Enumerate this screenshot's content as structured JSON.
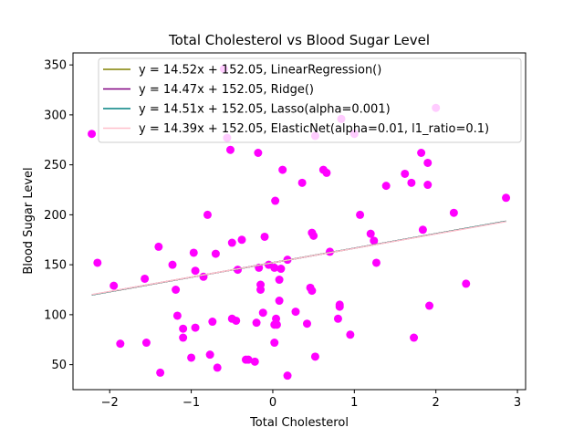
{
  "chart_data": {
    "type": "scatter",
    "title": "Total Cholesterol vs Blood Sugar Level",
    "xlabel": "Total Cholesterol",
    "ylabel": "Blood Sugar Level",
    "xlim": [
      -2.45,
      3.1
    ],
    "ylim": [
      25,
      362
    ],
    "xticks": [
      -2,
      -1,
      0,
      1,
      2,
      3
    ],
    "yticks": [
      50,
      100,
      150,
      200,
      250,
      300,
      350
    ],
    "point_color": "#ff00ff",
    "legend_position": "upper-center",
    "points": [
      [
        -2.22,
        281
      ],
      [
        -2.15,
        152
      ],
      [
        -1.95,
        129
      ],
      [
        -1.87,
        71
      ],
      [
        -1.57,
        136
      ],
      [
        -1.55,
        72
      ],
      [
        -1.38,
        42
      ],
      [
        -1.4,
        168
      ],
      [
        -1.23,
        150
      ],
      [
        -1.19,
        125
      ],
      [
        -1.17,
        99
      ],
      [
        -1.1,
        86
      ],
      [
        -1.1,
        77
      ],
      [
        -1.0,
        57
      ],
      [
        -0.97,
        162
      ],
      [
        -0.95,
        87
      ],
      [
        -0.95,
        144
      ],
      [
        -0.85,
        138
      ],
      [
        -0.8,
        200
      ],
      [
        -0.77,
        60
      ],
      [
        -0.74,
        93
      ],
      [
        -0.7,
        161
      ],
      [
        -0.68,
        47
      ],
      [
        -0.6,
        346
      ],
      [
        -0.56,
        277
      ],
      [
        -0.52,
        265
      ],
      [
        -0.5,
        172
      ],
      [
        -0.5,
        96
      ],
      [
        -0.45,
        94
      ],
      [
        -0.43,
        145
      ],
      [
        -0.38,
        175
      ],
      [
        -0.33,
        55
      ],
      [
        -0.3,
        55
      ],
      [
        -0.22,
        53
      ],
      [
        -0.2,
        92
      ],
      [
        -0.18,
        262
      ],
      [
        -0.17,
        147
      ],
      [
        -0.15,
        125
      ],
      [
        -0.15,
        130
      ],
      [
        -0.12,
        102
      ],
      [
        -0.1,
        178
      ],
      [
        -0.05,
        150
      ],
      [
        0.02,
        90
      ],
      [
        0.03,
        214
      ],
      [
        0.02,
        147
      ],
      [
        0.02,
        72
      ],
      [
        0.04,
        96
      ],
      [
        0.05,
        90
      ],
      [
        0.08,
        135
      ],
      [
        0.08,
        114
      ],
      [
        0.1,
        146
      ],
      [
        0.12,
        245
      ],
      [
        0.18,
        39
      ],
      [
        0.18,
        155
      ],
      [
        0.28,
        103
      ],
      [
        0.36,
        232
      ],
      [
        0.42,
        91
      ],
      [
        0.46,
        127
      ],
      [
        0.48,
        182
      ],
      [
        0.48,
        124
      ],
      [
        0.5,
        179
      ],
      [
        0.52,
        279
      ],
      [
        0.52,
        58
      ],
      [
        0.62,
        245
      ],
      [
        0.66,
        242
      ],
      [
        0.7,
        163
      ],
      [
        0.8,
        96
      ],
      [
        0.82,
        110
      ],
      [
        0.82,
        108
      ],
      [
        0.84,
        296
      ],
      [
        0.95,
        80
      ],
      [
        1.0,
        281
      ],
      [
        1.07,
        200
      ],
      [
        1.2,
        181
      ],
      [
        1.24,
        174
      ],
      [
        1.27,
        152
      ],
      [
        1.39,
        229
      ],
      [
        1.62,
        241
      ],
      [
        1.7,
        232
      ],
      [
        1.73,
        77
      ],
      [
        1.82,
        262
      ],
      [
        1.84,
        185
      ],
      [
        1.9,
        252
      ],
      [
        1.9,
        230
      ],
      [
        1.92,
        109
      ],
      [
        2.0,
        307
      ],
      [
        2.22,
        202
      ],
      [
        2.37,
        131
      ],
      [
        2.86,
        217
      ]
    ],
    "series": [
      {
        "label": "y = 14.52x + 152.05, LinearRegression()",
        "slope": 14.52,
        "intercept": 152.05,
        "color": "#808000"
      },
      {
        "label": "y = 14.47x + 152.05, Ridge()",
        "slope": 14.47,
        "intercept": 152.05,
        "color": "#800080"
      },
      {
        "label": "y = 14.51x + 152.05, Lasso(alpha=0.001)",
        "slope": 14.51,
        "intercept": 152.05,
        "color": "#008080"
      },
      {
        "label": "y = 14.39x + 152.05, ElasticNet(alpha=0.01, l1_ratio=0.1)",
        "slope": 14.39,
        "intercept": 152.05,
        "color": "#ffc0cb"
      }
    ],
    "line_x_range": [
      -2.22,
      2.86
    ]
  }
}
